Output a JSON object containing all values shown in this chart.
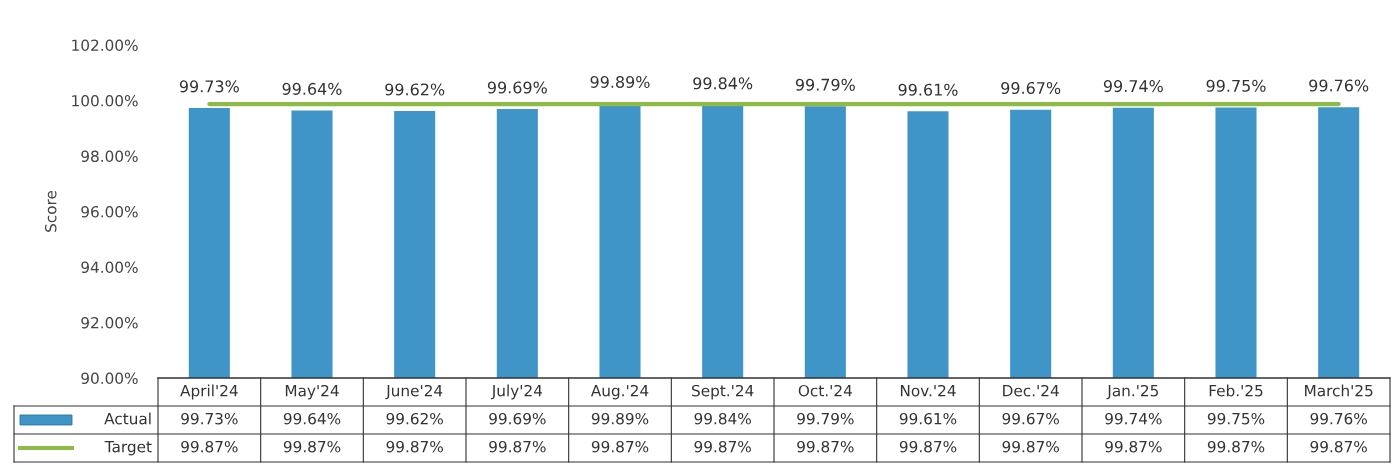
{
  "chart_data": {
    "type": "bar",
    "ylabel": "Score",
    "categories": [
      "April'24",
      "May'24",
      "June'24",
      "July'24",
      "Aug.'24",
      "Sept.'24",
      "Oct.'24",
      "Nov.'24",
      "Dec.'24",
      "Jan.'25",
      "Feb.'25",
      "March'25"
    ],
    "series": [
      {
        "name": "Actual",
        "color": "#3f95c8",
        "values": [
          99.73,
          99.64,
          99.62,
          99.69,
          99.89,
          99.84,
          99.79,
          99.61,
          99.67,
          99.74,
          99.75,
          99.76
        ],
        "value_labels": [
          "99.73%",
          "99.64%",
          "99.62%",
          "99.69%",
          "99.89%",
          "99.84%",
          "99.79%",
          "99.61%",
          "99.67%",
          "99.74%",
          "99.75%",
          "99.76%"
        ]
      },
      {
        "name": "Target",
        "type": "line",
        "color": "#8dbb45",
        "values": [
          99.87,
          99.87,
          99.87,
          99.87,
          99.87,
          99.87,
          99.87,
          99.87,
          99.87,
          99.87,
          99.87,
          99.87
        ],
        "value_labels": [
          "99.87%",
          "99.87%",
          "99.87%",
          "99.87%",
          "99.87%",
          "99.87%",
          "99.87%",
          "99.87%",
          "99.87%",
          "99.87%",
          "99.87%",
          "99.87%"
        ]
      }
    ],
    "ylim": [
      90,
      102
    ],
    "yticks": [
      {
        "value": 90,
        "label": "90.00%"
      },
      {
        "value": 92,
        "label": "92.00%"
      },
      {
        "value": 94,
        "label": "94.00%"
      },
      {
        "value": 96,
        "label": "96.00%"
      },
      {
        "value": 98,
        "label": "98.00%"
      },
      {
        "value": 100,
        "label": "100.00%"
      },
      {
        "value": 102,
        "label": "102.00%"
      }
    ],
    "grid": false,
    "legend": "bottom",
    "data_labels": false
  }
}
